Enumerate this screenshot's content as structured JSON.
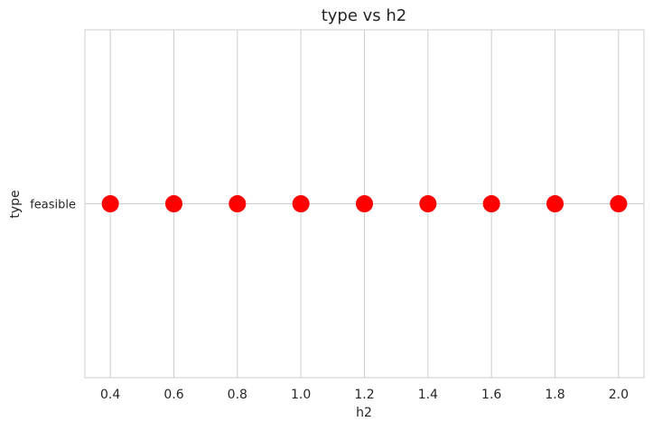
{
  "chart_data": {
    "type": "scatter",
    "title": "type vs h2",
    "xlabel": "h2",
    "ylabel": "type",
    "xlim": [
      0.32,
      2.08
    ],
    "xticks": [
      0.4,
      0.6,
      0.8,
      1.0,
      1.2,
      1.4,
      1.6,
      1.8,
      2.0
    ],
    "xtick_labels": [
      "0.4",
      "0.6",
      "0.8",
      "1.0",
      "1.2",
      "1.4",
      "1.6",
      "1.8",
      "2.0"
    ],
    "categories": [
      "feasible"
    ],
    "grid": true,
    "series": [
      {
        "color": "#ff0000",
        "x": [
          0.4,
          0.6,
          0.8,
          1.0,
          1.2,
          1.4,
          1.6,
          1.8,
          2.0
        ],
        "y": [
          "feasible",
          "feasible",
          "feasible",
          "feasible",
          "feasible",
          "feasible",
          "feasible",
          "feasible",
          "feasible"
        ]
      }
    ]
  }
}
